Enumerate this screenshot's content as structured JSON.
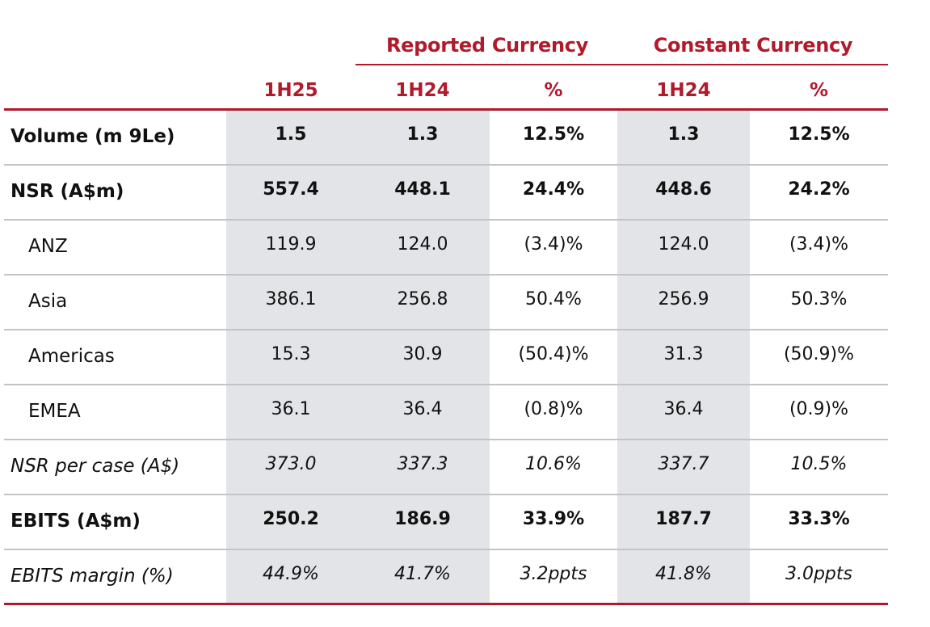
{
  "header": {
    "group_reported": "Reported Currency",
    "group_constant": "Constant Currency",
    "columns": [
      "1H25",
      "1H24",
      "%",
      "1H24",
      "%"
    ]
  },
  "rows": [
    {
      "label": "Volume (m 9Le)",
      "style": "bold",
      "values": [
        "1.5",
        "1.3",
        "12.5%",
        "1.3",
        "12.5%"
      ]
    },
    {
      "label": "NSR (A$m)",
      "style": "bold",
      "values": [
        "557.4",
        "448.1",
        "24.4%",
        "448.6",
        "24.2%"
      ]
    },
    {
      "label": "ANZ",
      "style": "indent",
      "values": [
        "119.9",
        "124.0",
        "(3.4)%",
        "124.0",
        "(3.4)%"
      ]
    },
    {
      "label": "Asia",
      "style": "indent",
      "values": [
        "386.1",
        "256.8",
        "50.4%",
        "256.9",
        "50.3%"
      ]
    },
    {
      "label": "Americas",
      "style": "indent",
      "values": [
        "15.3",
        "30.9",
        "(50.4)%",
        "31.3",
        "(50.9)%"
      ]
    },
    {
      "label": "EMEA",
      "style": "indent",
      "values": [
        "36.1",
        "36.4",
        "(0.8)%",
        "36.4",
        "(0.9)%"
      ]
    },
    {
      "label": "NSR per case (A$)",
      "style": "italic",
      "values": [
        "373.0",
        "337.3",
        "10.6%",
        "337.7",
        "10.5%"
      ]
    },
    {
      "label": "EBITS (A$m)",
      "style": "bold",
      "values": [
        "250.2",
        "186.9",
        "33.9%",
        "187.7",
        "33.3%"
      ]
    },
    {
      "label": "EBITS margin (%)",
      "style": "italic",
      "values": [
        "44.9%",
        "41.7%",
        "3.2ppts",
        "41.8%",
        "3.0ppts"
      ]
    }
  ],
  "colors": {
    "accent": "#b11a2b",
    "shade": "#e3e4e8",
    "divider": "#c4c4c4"
  }
}
